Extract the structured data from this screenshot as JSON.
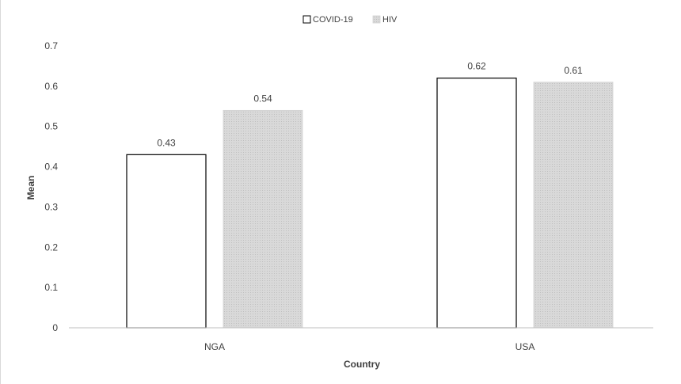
{
  "chart_data": {
    "type": "bar",
    "title": "",
    "xlabel": "Country",
    "ylabel": "Mean",
    "categories": [
      "NGA",
      "USA"
    ],
    "series": [
      {
        "name": "COVID-19",
        "values": [
          0.43,
          0.62
        ],
        "fill": "#ffffff",
        "stroke": "#000000",
        "labels": [
          "0.43",
          "0.62"
        ]
      },
      {
        "name": "HIV",
        "values": [
          0.54,
          0.61
        ],
        "fill": "#d3d3d3",
        "stroke": "#d3d3d3",
        "labels": [
          "0.54",
          "0.61"
        ]
      }
    ],
    "ylim": [
      0,
      0.7
    ],
    "yticks": [
      0,
      0.1,
      0.2,
      0.3,
      0.4,
      0.5,
      0.6,
      0.7
    ],
    "ytick_labels": [
      "0",
      "0.1",
      "0.2",
      "0.3",
      "0.4",
      "0.5",
      "0.6",
      "0.7"
    ],
    "grid": false,
    "legend_position": "top-center"
  }
}
